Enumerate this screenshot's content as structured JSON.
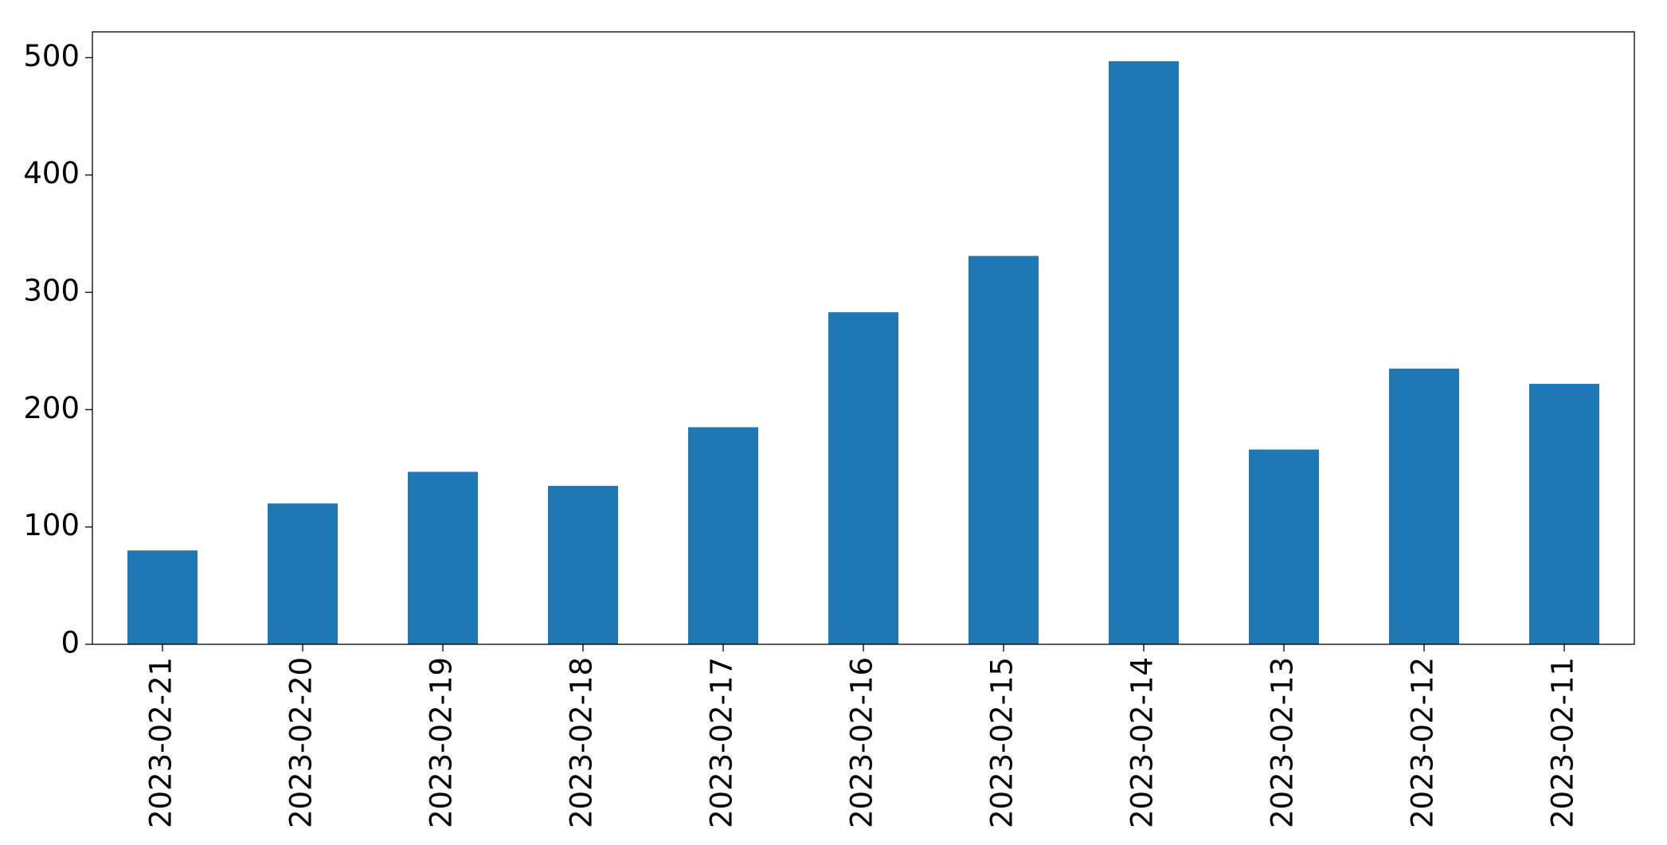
{
  "chart_data": {
    "type": "bar",
    "categories": [
      "2023-02-21",
      "2023-02-20",
      "2023-02-19",
      "2023-02-18",
      "2023-02-17",
      "2023-02-16",
      "2023-02-15",
      "2023-02-14",
      "2023-02-13",
      "2023-02-12",
      "2023-02-11"
    ],
    "values": [
      80,
      120,
      147,
      135,
      185,
      283,
      331,
      497,
      166,
      235,
      222
    ],
    "color": "#1f77b4",
    "ylim": [
      0,
      522
    ],
    "yticks": [
      0,
      100,
      200,
      300,
      400,
      500
    ],
    "grid": false
  }
}
